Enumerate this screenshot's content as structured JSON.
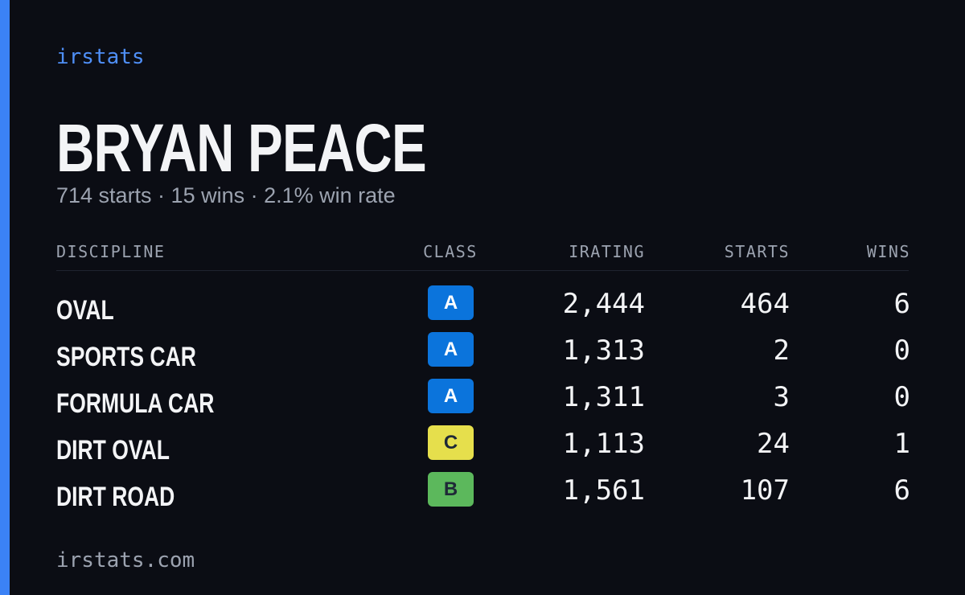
{
  "brand": "irstats",
  "driver": {
    "name": "BRYAN PEACE",
    "summary": "714 starts · 15 wins · 2.1% win rate"
  },
  "table": {
    "headers": [
      "DISCIPLINE",
      "CLASS",
      "IRATING",
      "STARTS",
      "WINS"
    ],
    "rows": [
      {
        "discipline": "OVAL",
        "class": "A",
        "class_color": "#0b74dc",
        "irating": "2,444",
        "starts": "464",
        "wins": "6"
      },
      {
        "discipline": "SPORTS CAR",
        "class": "A",
        "class_color": "#0b74dc",
        "irating": "1,313",
        "starts": "2",
        "wins": "0"
      },
      {
        "discipline": "FORMULA CAR",
        "class": "A",
        "class_color": "#0b74dc",
        "irating": "1,311",
        "starts": "3",
        "wins": "0"
      },
      {
        "discipline": "DIRT OVAL",
        "class": "C",
        "class_color": "#e6df4c",
        "irating": "1,113",
        "starts": "24",
        "wins": "1"
      },
      {
        "discipline": "DIRT ROAD",
        "class": "B",
        "class_color": "#5cb85c",
        "irating": "1,561",
        "starts": "107",
        "wins": "6"
      }
    ]
  },
  "footer": "irstats.com"
}
